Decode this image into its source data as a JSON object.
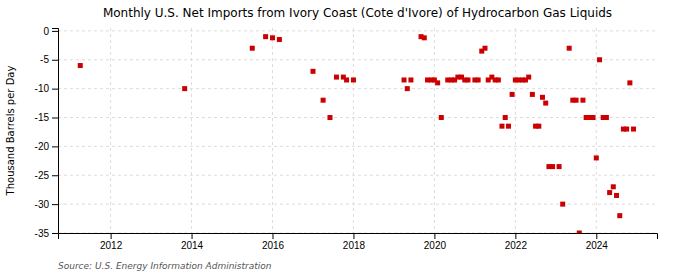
{
  "chart_data": {
    "type": "scatter",
    "title": "Monthly U.S. Net Imports from Ivory Coast (Cote d'Ivore) of Hydrocarbon Gas Liquids",
    "y_label": "Thousand Barrels per Day",
    "source": "Source: U.S. Energy Information Administration",
    "color": "#cc0000",
    "marker": "square",
    "grid": true,
    "xlim": [
      2010.7,
      2025.5
    ],
    "xticks": [
      2012,
      2014,
      2016,
      2018,
      2020,
      2022,
      2024
    ],
    "ylim": [
      -35,
      0.5
    ],
    "yticks": [
      0,
      -5,
      -10,
      -15,
      -20,
      -25,
      -30,
      -35
    ],
    "x": [
      2011.25,
      2013.83,
      2015.5,
      2015.83,
      2016.0,
      2016.17,
      2017.0,
      2017.25,
      2017.42,
      2017.58,
      2017.75,
      2017.83,
      2018.0,
      2019.25,
      2019.33,
      2019.42,
      2019.67,
      2019.75,
      2019.83,
      2019.92,
      2020.0,
      2020.08,
      2020.17,
      2020.33,
      2020.42,
      2020.5,
      2020.58,
      2020.67,
      2020.75,
      2020.83,
      2021.0,
      2021.08,
      2021.17,
      2021.25,
      2021.33,
      2021.42,
      2021.5,
      2021.58,
      2021.67,
      2021.75,
      2021.83,
      2021.92,
      2022.0,
      2022.08,
      2022.17,
      2022.25,
      2022.33,
      2022.42,
      2022.5,
      2022.58,
      2022.67,
      2022.75,
      2022.83,
      2022.92,
      2023.08,
      2023.17,
      2023.33,
      2023.42,
      2023.5,
      2023.58,
      2023.67,
      2023.75,
      2023.83,
      2023.92,
      2024.0,
      2024.08,
      2024.17,
      2024.25,
      2024.33,
      2024.42,
      2024.5,
      2024.58,
      2024.67,
      2024.75,
      2024.83,
      2024.92
    ],
    "values": [
      -6.0,
      -10.0,
      -3.0,
      -1.0,
      -1.2,
      -1.5,
      -7.0,
      -12.0,
      -15.0,
      -8.0,
      -8.0,
      -8.5,
      -8.5,
      -8.5,
      -10.0,
      -8.5,
      -1.0,
      -1.2,
      -8.5,
      -8.5,
      -8.5,
      -9.0,
      -15.0,
      -8.5,
      -8.5,
      -8.5,
      -8.0,
      -8.0,
      -8.5,
      -8.5,
      -8.5,
      -8.5,
      -3.5,
      -3.0,
      -8.5,
      -8.0,
      -8.5,
      -8.5,
      -16.5,
      -15.0,
      -16.5,
      -11.0,
      -8.5,
      -8.5,
      -8.5,
      -8.5,
      -8.0,
      -11.0,
      -16.5,
      -16.5,
      -11.5,
      -12.5,
      -23.5,
      -23.5,
      -23.5,
      -30.0,
      -3.0,
      -12.0,
      -12.0,
      -35.0,
      -12.0,
      -15.0,
      -15.0,
      -15.0,
      -22.0,
      -5.0,
      -15.0,
      -15.0,
      -28.0,
      -27.0,
      -28.5,
      -32.0,
      -17.0,
      -17.0,
      -9.0,
      -17.0
    ]
  }
}
